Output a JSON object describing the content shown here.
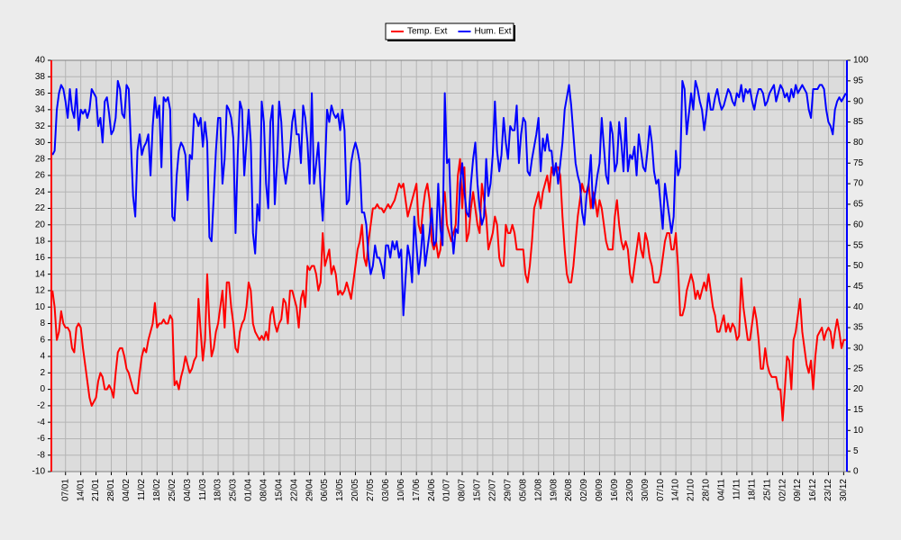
{
  "chart_data": {
    "type": "line",
    "categories": [
      null,
      null,
      null,
      null,
      null,
      null,
      "07/01",
      null,
      null,
      null,
      null,
      null,
      null,
      "14/01",
      null,
      null,
      null,
      null,
      null,
      null,
      "21/01",
      null,
      null,
      null,
      null,
      null,
      null,
      "28/01",
      null,
      null,
      null,
      null,
      null,
      null,
      "04/02",
      null,
      null,
      null,
      null,
      null,
      null,
      "11/02",
      null,
      null,
      null,
      null,
      null,
      null,
      "18/02",
      null,
      null,
      null,
      null,
      null,
      null,
      "25/02",
      null,
      null,
      null,
      null,
      null,
      null,
      "04/03",
      null,
      null,
      null,
      null,
      null,
      null,
      "11/03",
      null,
      null,
      null,
      null,
      null,
      null,
      "18/03",
      null,
      null,
      null,
      null,
      null,
      null,
      "25/03",
      null,
      null,
      null,
      null,
      null,
      null,
      "01/04",
      null,
      null,
      null,
      null,
      null,
      null,
      "08/04",
      null,
      null,
      null,
      null,
      null,
      null,
      "15/04",
      null,
      null,
      null,
      null,
      null,
      null,
      "22/04",
      null,
      null,
      null,
      null,
      null,
      null,
      "29/04",
      null,
      null,
      null,
      null,
      null,
      null,
      "06/05",
      null,
      null,
      null,
      null,
      null,
      null,
      "13/05",
      null,
      null,
      null,
      null,
      null,
      null,
      "20/05",
      null,
      null,
      null,
      null,
      null,
      null,
      "27/05",
      null,
      null,
      null,
      null,
      null,
      null,
      "03/06",
      null,
      null,
      null,
      null,
      null,
      null,
      "10/06",
      null,
      null,
      null,
      null,
      null,
      null,
      "17/06",
      null,
      null,
      null,
      null,
      null,
      null,
      "24/06",
      null,
      null,
      null,
      null,
      null,
      null,
      "01/07",
      null,
      null,
      null,
      null,
      null,
      null,
      "08/07",
      null,
      null,
      null,
      null,
      null,
      null,
      "15/07",
      null,
      null,
      null,
      null,
      null,
      null,
      "22/07",
      null,
      null,
      null,
      null,
      null,
      null,
      "29/07",
      null,
      null,
      null,
      null,
      null,
      null,
      "05/08",
      null,
      null,
      null,
      null,
      null,
      null,
      "12/08",
      null,
      null,
      null,
      null,
      null,
      null,
      "19/08",
      null,
      null,
      null,
      null,
      null,
      null,
      "26/08",
      null,
      null,
      null,
      null,
      null,
      null,
      "02/09",
      null,
      null,
      null,
      null,
      null,
      null,
      "09/09",
      null,
      null,
      null,
      null,
      null,
      null,
      "16/09",
      null,
      null,
      null,
      null,
      null,
      null,
      "23/09",
      null,
      null,
      null,
      null,
      null,
      null,
      "30/09",
      null,
      null,
      null,
      null,
      null,
      null,
      "07/10",
      null,
      null,
      null,
      null,
      null,
      null,
      "14/10",
      null,
      null,
      null,
      null,
      null,
      null,
      "21/10",
      null,
      null,
      null,
      null,
      null,
      null,
      "28/10",
      null,
      null,
      null,
      null,
      null,
      null,
      "04/11",
      null,
      null,
      null,
      null,
      null,
      null,
      "11/11",
      null,
      null,
      null,
      null,
      null,
      null,
      "18/11",
      null,
      null,
      null,
      null,
      null,
      null,
      "25/11",
      null,
      null,
      null,
      null,
      null,
      null,
      "02/12",
      null,
      null,
      null,
      null,
      null,
      null,
      "09/12",
      null,
      null,
      null,
      null,
      null,
      null,
      "16/12",
      null,
      null,
      null,
      null,
      null,
      null,
      "23/12",
      null,
      null,
      null,
      null,
      null,
      null,
      "30/12",
      null
    ],
    "series": [
      {
        "name": "Temp. Ext",
        "color": "#ff0000",
        "axis": "y",
        "values": [
          12,
          10,
          6,
          7,
          9.5,
          8,
          7.5,
          7.5,
          7,
          5,
          4.5,
          7.5,
          8,
          7.5,
          5,
          3,
          1,
          -1,
          -2,
          -1.5,
          -1,
          1,
          2,
          1.5,
          0,
          0,
          0.5,
          0,
          -1,
          2,
          4.5,
          5,
          5,
          4,
          2.5,
          2,
          1,
          0,
          -0.5,
          -0.5,
          2,
          4,
          5,
          4.5,
          6,
          7,
          8,
          10.5,
          7.5,
          8,
          8,
          8.5,
          8,
          8,
          9,
          8.5,
          0.5,
          1,
          0,
          1.5,
          2.5,
          4,
          3,
          2,
          2.5,
          3.5,
          4,
          11,
          7,
          3.5,
          6,
          14,
          8,
          4,
          5,
          7,
          8,
          10,
          12,
          7.5,
          13,
          13,
          10,
          8,
          5,
          4.5,
          7,
          8,
          8.5,
          10,
          13,
          12,
          8,
          7,
          6.5,
          6,
          6.5,
          6,
          7,
          6,
          9,
          10,
          8,
          7,
          8,
          8.5,
          11,
          10.5,
          8,
          12,
          12,
          11,
          10,
          7.5,
          11,
          12,
          10,
          15,
          14.5,
          15,
          15,
          14,
          12,
          13,
          19,
          15,
          16,
          17,
          14,
          15,
          14,
          11.5,
          12,
          11.5,
          12,
          13,
          12,
          11,
          13,
          15,
          17,
          18,
          20,
          16,
          15,
          18,
          20,
          22,
          22,
          22.5,
          22,
          22,
          21.5,
          22,
          22.5,
          22,
          22.5,
          23,
          24,
          25,
          24.5,
          25,
          23,
          21,
          22,
          23,
          24,
          25,
          20,
          19,
          22,
          24,
          25,
          23,
          18,
          17,
          18,
          16,
          17,
          22,
          24,
          20,
          19,
          18,
          19,
          20,
          26,
          28,
          22,
          27,
          18,
          19,
          22,
          24,
          22,
          20,
          19,
          25,
          23,
          21,
          17,
          18,
          19,
          21,
          20,
          16,
          15,
          15,
          20,
          19,
          19,
          20,
          19,
          17,
          17,
          17,
          17,
          14,
          13,
          15,
          18,
          22,
          23,
          24,
          22,
          24,
          25,
          26,
          24,
          27,
          26,
          27,
          27,
          26,
          21,
          17,
          14,
          13,
          13,
          15,
          18,
          21,
          23,
          25,
          24,
          24,
          25,
          22,
          24,
          23,
          21,
          23,
          22,
          20,
          18,
          17,
          17,
          17,
          21,
          23,
          20,
          18,
          17,
          18,
          17,
          14,
          13,
          15,
          17,
          19,
          17,
          16,
          19,
          18,
          16,
          15,
          13,
          13,
          13,
          14,
          16,
          18,
          19,
          19,
          17,
          17,
          19,
          15,
          9,
          9,
          10,
          12,
          13,
          14,
          13,
          11,
          12,
          11,
          12,
          13,
          12,
          14,
          12,
          10,
          9,
          7,
          7,
          8,
          9,
          7,
          8,
          7,
          8,
          7.5,
          6,
          6.5,
          13.5,
          10,
          8,
          6,
          6,
          8,
          10,
          8.5,
          6,
          2.5,
          2.5,
          5,
          3,
          2,
          1.5,
          1.5,
          1.5,
          0,
          0,
          -3.8,
          0,
          4,
          3.5,
          0,
          6,
          7,
          9,
          11,
          7,
          5,
          3,
          2,
          3.5,
          0,
          4,
          6.5,
          7,
          7.5,
          6,
          7,
          7.5,
          7,
          5,
          7,
          8.5,
          7,
          5,
          6,
          6
        ]
      },
      {
        "name": "Hum. Ext",
        "color": "#0000ff",
        "axis": "y2",
        "values": [
          77,
          78,
          88,
          92,
          94,
          93,
          90,
          86,
          93,
          88,
          86,
          93,
          83,
          88,
          87,
          88,
          86,
          88,
          93,
          92,
          91,
          84,
          86,
          80,
          90,
          91,
          87,
          82,
          83,
          86,
          95,
          93,
          87,
          86,
          94,
          93,
          80,
          67,
          62,
          78,
          82,
          77,
          79,
          80,
          82,
          72,
          84,
          91,
          86,
          89,
          74,
          91,
          90,
          91,
          88,
          62,
          61,
          72,
          78,
          80,
          79,
          77,
          66,
          77,
          76,
          87,
          86,
          84,
          86,
          79,
          85,
          80,
          57,
          56,
          67,
          78,
          86,
          86,
          70,
          76,
          89,
          88,
          86,
          81,
          58,
          77,
          90,
          88,
          72,
          80,
          88,
          80,
          58,
          53,
          65,
          61,
          90,
          85,
          70,
          64,
          85,
          89,
          65,
          75,
          90,
          85,
          74,
          70,
          74,
          78,
          85,
          88,
          82,
          82,
          75,
          89,
          86,
          80,
          70,
          92,
          70,
          75,
          80,
          69,
          61,
          73,
          88,
          85,
          89,
          87,
          86,
          87,
          83,
          88,
          83,
          65,
          66,
          75,
          78,
          80,
          78,
          75,
          63,
          63,
          60,
          52,
          48,
          50,
          55,
          52,
          52,
          50,
          47,
          55,
          55,
          52,
          56,
          54,
          56,
          52,
          54,
          38,
          47,
          55,
          52,
          46,
          62,
          55,
          48,
          53,
          60,
          50,
          54,
          58,
          64,
          55,
          56,
          70,
          59,
          55,
          92,
          75,
          76,
          60,
          53,
          59,
          58,
          70,
          75,
          68,
          63,
          62,
          70,
          76,
          80,
          70,
          64,
          60,
          62,
          76,
          67,
          70,
          77,
          90,
          78,
          73,
          77,
          86,
          80,
          76,
          84,
          83,
          83,
          89,
          75,
          82,
          86,
          85,
          73,
          72,
          76,
          79,
          82,
          86,
          73,
          81,
          78,
          82,
          78,
          78,
          72,
          75,
          70,
          75,
          80,
          88,
          91,
          94,
          89,
          82,
          75,
          72,
          70,
          63,
          60,
          67,
          70,
          77,
          64,
          68,
          72,
          75,
          86,
          79,
          72,
          70,
          85,
          82,
          73,
          75,
          85,
          80,
          73,
          86,
          73,
          77,
          76,
          79,
          72,
          82,
          78,
          74,
          73,
          78,
          84,
          80,
          73,
          70,
          71,
          65,
          59,
          70,
          66,
          62,
          58,
          62,
          78,
          72,
          74,
          95,
          93,
          82,
          87,
          92,
          88,
          95,
          93,
          90,
          88,
          83,
          87,
          92,
          88,
          88,
          91,
          93,
          90,
          88,
          89,
          91,
          93,
          92,
          90,
          89,
          92,
          91,
          94,
          90,
          93,
          92,
          93,
          90,
          88,
          91,
          93,
          93,
          92,
          89,
          90,
          92,
          93,
          94,
          90,
          92,
          94,
          93,
          91,
          92,
          90,
          93,
          91,
          94,
          92,
          93,
          94,
          93,
          92,
          88,
          86,
          93,
          93,
          93,
          94,
          94,
          93,
          88,
          85,
          84,
          82,
          88,
          90,
          91,
          90,
          91,
          92
        ]
      }
    ],
    "ylim": [
      -10,
      40
    ],
    "yticks": [
      -10,
      -8,
      -6,
      -4,
      -2,
      0,
      2,
      4,
      6,
      8,
      10,
      12,
      14,
      16,
      18,
      20,
      22,
      24,
      26,
      28,
      30,
      32,
      34,
      36,
      38,
      40
    ],
    "y2lim": [
      0,
      100
    ],
    "y2ticks": [
      0,
      5,
      10,
      15,
      20,
      25,
      30,
      35,
      40,
      45,
      50,
      55,
      60,
      65,
      70,
      75,
      80,
      85,
      90,
      95,
      100
    ],
    "grid": true,
    "legend": "top"
  }
}
